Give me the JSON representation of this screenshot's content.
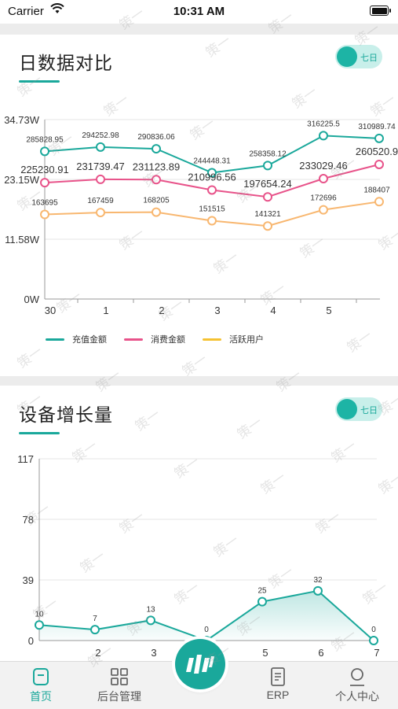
{
  "status_bar": {
    "carrier": "Carrier",
    "time": "10:31 AM"
  },
  "card1": {
    "title": "日数据对比",
    "toggle_label": "七日",
    "legend": [
      {
        "name": "充值金额",
        "color": "#1aa89b"
      },
      {
        "name": "消费金额",
        "color": "#e8538a"
      },
      {
        "name": "活跃用户",
        "color": "#f5c232"
      }
    ]
  },
  "card2": {
    "title": "设备增长量",
    "toggle_label": "七日"
  },
  "watermark_text": "策一",
  "colors": {
    "accent": "#1aa89b",
    "pink": "#e8538a",
    "yellow": "#f5c232",
    "orange_line": "#f8b770"
  },
  "chart_data": [
    {
      "type": "line",
      "y_ticks": [
        "34.73W",
        "23.15W",
        "11.58W",
        "0W"
      ],
      "ylim": [
        0,
        347300
      ],
      "categories": [
        "30",
        "1",
        "2",
        "3",
        "4",
        "5",
        ""
      ],
      "series": [
        {
          "name": "充值金额",
          "values": [
            285828.95,
            294252.98,
            290836.06,
            244448.31,
            258358.12,
            316225.5,
            310989.74
          ],
          "labels": [
            "285828.95",
            "294252.98",
            "290836.06",
            "244448.31",
            "258358.12",
            "316225.5",
            "310989.74"
          ]
        },
        {
          "name": "消费金额",
          "values": [
            225230.91,
            231739.47,
            231123.89,
            210996.56,
            197654.24,
            233029.46,
            260520.9
          ],
          "labels": [
            "225230.91",
            "231739.47",
            "231123.89",
            "210996.56",
            "197654.24",
            "233029.46",
            "260520.9"
          ]
        },
        {
          "name": "活跃用户",
          "values": [
            163695,
            167459,
            168205,
            151515,
            141321,
            172696,
            188407
          ],
          "labels": [
            "163695",
            "167459",
            "168205",
            "151515",
            "141321",
            "172696",
            "188407"
          ]
        }
      ]
    },
    {
      "type": "area",
      "y_ticks": [
        "117",
        "78",
        "39",
        "0"
      ],
      "ylim": [
        0,
        117
      ],
      "categories": [
        "",
        "2",
        "3",
        "",
        "5",
        "6",
        "7"
      ],
      "series": [
        {
          "name": "",
          "values": [
            10,
            7,
            13,
            0,
            25,
            32,
            0
          ],
          "labels": [
            "10",
            "7",
            "13",
            "0",
            "25",
            "32",
            "0"
          ]
        }
      ]
    }
  ],
  "tabs": [
    {
      "label": "首页",
      "icon": "home-icon",
      "active": true
    },
    {
      "label": "后台管理",
      "icon": "grid-icon",
      "active": false
    },
    {
      "label": "ERP",
      "icon": "document-icon",
      "active": false
    },
    {
      "label": "个人中心",
      "icon": "user-icon",
      "active": false
    }
  ]
}
